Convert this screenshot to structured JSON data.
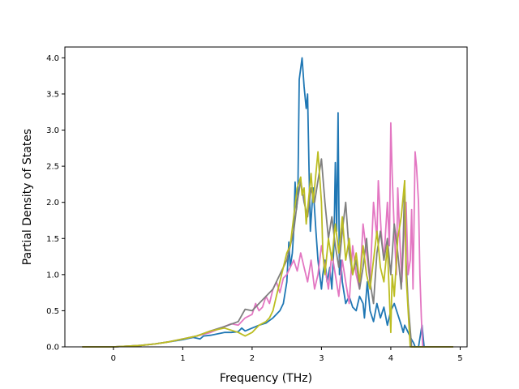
{
  "chart_data": {
    "type": "line",
    "xlabel": "Frequency (THz)",
    "ylabel": "Partial Density of States",
    "xlim": [
      -0.7,
      5.1
    ],
    "ylim": [
      0,
      4.15
    ],
    "x_ticks": [
      "0",
      "1",
      "2",
      "3",
      "4",
      "5"
    ],
    "y_ticks": [
      "0.0",
      "0.5",
      "1.0",
      "1.5",
      "2.0",
      "2.5",
      "3.0",
      "3.5",
      "4.0"
    ],
    "grid": false,
    "legend": "none",
    "series": [
      {
        "color": "#1f77b4",
        "points": [
          [
            -0.45,
            0
          ],
          [
            0,
            0
          ],
          [
            0.2,
            0.01
          ],
          [
            0.4,
            0.02
          ],
          [
            0.6,
            0.04
          ],
          [
            0.8,
            0.07
          ],
          [
            1.0,
            0.1
          ],
          [
            1.1,
            0.12
          ],
          [
            1.15,
            0.13
          ],
          [
            1.2,
            0.12
          ],
          [
            1.25,
            0.11
          ],
          [
            1.3,
            0.15
          ],
          [
            1.4,
            0.16
          ],
          [
            1.5,
            0.18
          ],
          [
            1.6,
            0.2
          ],
          [
            1.7,
            0.2
          ],
          [
            1.8,
            0.21
          ],
          [
            1.85,
            0.26
          ],
          [
            1.9,
            0.22
          ],
          [
            2.0,
            0.26
          ],
          [
            2.1,
            0.3
          ],
          [
            2.2,
            0.33
          ],
          [
            2.3,
            0.4
          ],
          [
            2.35,
            0.45
          ],
          [
            2.4,
            0.5
          ],
          [
            2.45,
            0.6
          ],
          [
            2.5,
            0.9
          ],
          [
            2.53,
            1.45
          ],
          [
            2.55,
            1.1
          ],
          [
            2.58,
            1.3
          ],
          [
            2.6,
            1.6
          ],
          [
            2.62,
            2.28
          ],
          [
            2.64,
            1.9
          ],
          [
            2.66,
            2.1
          ],
          [
            2.68,
            3.7
          ],
          [
            2.72,
            4.0
          ],
          [
            2.75,
            3.6
          ],
          [
            2.78,
            3.3
          ],
          [
            2.8,
            3.5
          ],
          [
            2.82,
            2.5
          ],
          [
            2.84,
            1.6
          ],
          [
            2.88,
            2.2
          ],
          [
            2.92,
            1.6
          ],
          [
            2.95,
            1.2
          ],
          [
            3.0,
            0.8
          ],
          [
            3.02,
            1.0
          ],
          [
            3.05,
            1.2
          ],
          [
            3.08,
            0.9
          ],
          [
            3.12,
            1.1
          ],
          [
            3.15,
            0.8
          ],
          [
            3.18,
            1.4
          ],
          [
            3.2,
            2.55
          ],
          [
            3.22,
            1.6
          ],
          [
            3.24,
            3.24
          ],
          [
            3.26,
            1.0
          ],
          [
            3.28,
            1.2
          ],
          [
            3.3,
            0.9
          ],
          [
            3.35,
            0.6
          ],
          [
            3.4,
            0.7
          ],
          [
            3.45,
            0.55
          ],
          [
            3.5,
            0.5
          ],
          [
            3.55,
            0.7
          ],
          [
            3.6,
            0.6
          ],
          [
            3.62,
            0.4
          ],
          [
            3.66,
            0.9
          ],
          [
            3.7,
            0.5
          ],
          [
            3.75,
            0.35
          ],
          [
            3.8,
            0.6
          ],
          [
            3.85,
            0.4
          ],
          [
            3.9,
            0.55
          ],
          [
            3.95,
            0.3
          ],
          [
            4.0,
            0.5
          ],
          [
            4.05,
            0.6
          ],
          [
            4.1,
            0.45
          ],
          [
            4.15,
            0.3
          ],
          [
            4.18,
            0.2
          ],
          [
            4.2,
            0.3
          ],
          [
            4.25,
            0.2
          ],
          [
            4.3,
            0.1
          ],
          [
            4.33,
            0.05
          ],
          [
            4.35,
            0.0
          ],
          [
            4.4,
            0.0
          ],
          [
            4.45,
            0.3
          ],
          [
            4.48,
            0.0
          ],
          [
            4.9,
            0
          ]
        ]
      },
      {
        "color": "#e377c2",
        "points": [
          [
            -0.45,
            0
          ],
          [
            0,
            0
          ],
          [
            0.2,
            0.01
          ],
          [
            0.4,
            0.02
          ],
          [
            0.6,
            0.04
          ],
          [
            0.8,
            0.07
          ],
          [
            1.0,
            0.11
          ],
          [
            1.2,
            0.15
          ],
          [
            1.4,
            0.2
          ],
          [
            1.6,
            0.28
          ],
          [
            1.7,
            0.32
          ],
          [
            1.8,
            0.3
          ],
          [
            1.9,
            0.4
          ],
          [
            2.0,
            0.45
          ],
          [
            2.05,
            0.6
          ],
          [
            2.1,
            0.5
          ],
          [
            2.15,
            0.55
          ],
          [
            2.2,
            0.7
          ],
          [
            2.25,
            0.6
          ],
          [
            2.3,
            0.8
          ],
          [
            2.35,
            0.9
          ],
          [
            2.4,
            0.75
          ],
          [
            2.45,
            0.95
          ],
          [
            2.5,
            1.0
          ],
          [
            2.55,
            1.1
          ],
          [
            2.6,
            1.2
          ],
          [
            2.65,
            1.05
          ],
          [
            2.7,
            1.3
          ],
          [
            2.75,
            1.1
          ],
          [
            2.8,
            0.9
          ],
          [
            2.85,
            1.2
          ],
          [
            2.9,
            0.8
          ],
          [
            2.95,
            1.0
          ],
          [
            3.0,
            1.4
          ],
          [
            3.05,
            1.1
          ],
          [
            3.1,
            0.8
          ],
          [
            3.15,
            1.3
          ],
          [
            3.2,
            1.0
          ],
          [
            3.25,
            0.7
          ],
          [
            3.3,
            1.2
          ],
          [
            3.35,
            0.9
          ],
          [
            3.4,
            0.6
          ],
          [
            3.45,
            1.4
          ],
          [
            3.5,
            1.0
          ],
          [
            3.55,
            0.8
          ],
          [
            3.6,
            1.7
          ],
          [
            3.65,
            1.3
          ],
          [
            3.7,
            0.9
          ],
          [
            3.75,
            2.0
          ],
          [
            3.8,
            1.5
          ],
          [
            3.82,
            2.3
          ],
          [
            3.86,
            1.6
          ],
          [
            3.9,
            1.2
          ],
          [
            3.95,
            2.0
          ],
          [
            3.98,
            1.4
          ],
          [
            4.0,
            3.1
          ],
          [
            4.02,
            2.4
          ],
          [
            4.05,
            1.6
          ],
          [
            4.08,
            1.0
          ],
          [
            4.1,
            2.2
          ],
          [
            4.13,
            1.5
          ],
          [
            4.16,
            0.9
          ],
          [
            4.2,
            1.8
          ],
          [
            4.22,
            2.0
          ],
          [
            4.25,
            1.0
          ],
          [
            4.28,
            1.2
          ],
          [
            4.3,
            1.9
          ],
          [
            4.32,
            0.8
          ],
          [
            4.35,
            2.7
          ],
          [
            4.37,
            2.5
          ],
          [
            4.4,
            2.0
          ],
          [
            4.42,
            1.0
          ],
          [
            4.44,
            0.4
          ],
          [
            4.46,
            0.0
          ],
          [
            4.9,
            0
          ]
        ]
      },
      {
        "color": "#7f7f7f",
        "points": [
          [
            -0.45,
            0
          ],
          [
            0,
            0
          ],
          [
            0.2,
            0.01
          ],
          [
            0.4,
            0.02
          ],
          [
            0.6,
            0.04
          ],
          [
            0.8,
            0.07
          ],
          [
            1.0,
            0.11
          ],
          [
            1.2,
            0.15
          ],
          [
            1.4,
            0.22
          ],
          [
            1.6,
            0.28
          ],
          [
            1.8,
            0.35
          ],
          [
            1.9,
            0.52
          ],
          [
            2.0,
            0.5
          ],
          [
            2.1,
            0.6
          ],
          [
            2.2,
            0.7
          ],
          [
            2.3,
            0.8
          ],
          [
            2.4,
            1.0
          ],
          [
            2.5,
            1.2
          ],
          [
            2.6,
            1.6
          ],
          [
            2.65,
            2.0
          ],
          [
            2.7,
            2.3
          ],
          [
            2.75,
            2.0
          ],
          [
            2.8,
            1.8
          ],
          [
            2.85,
            2.2
          ],
          [
            2.9,
            2.0
          ],
          [
            2.95,
            2.3
          ],
          [
            3.0,
            2.6
          ],
          [
            3.05,
            2.0
          ],
          [
            3.1,
            1.5
          ],
          [
            3.15,
            1.8
          ],
          [
            3.2,
            1.4
          ],
          [
            3.25,
            1.1
          ],
          [
            3.3,
            1.6
          ],
          [
            3.35,
            2.0
          ],
          [
            3.4,
            1.3
          ],
          [
            3.45,
            1.0
          ],
          [
            3.5,
            1.2
          ],
          [
            3.55,
            0.8
          ],
          [
            3.6,
            1.1
          ],
          [
            3.65,
            1.5
          ],
          [
            3.7,
            0.9
          ],
          [
            3.75,
            0.6
          ],
          [
            3.8,
            1.3
          ],
          [
            3.85,
            1.6
          ],
          [
            3.9,
            1.2
          ],
          [
            3.95,
            1.5
          ],
          [
            4.0,
            1.0
          ],
          [
            4.05,
            1.7
          ],
          [
            4.1,
            1.3
          ],
          [
            4.15,
            0.8
          ],
          [
            4.18,
            1.5
          ],
          [
            4.2,
            2.3
          ],
          [
            4.22,
            1.2
          ],
          [
            4.25,
            0.6
          ],
          [
            4.3,
            0.0
          ],
          [
            4.9,
            0
          ]
        ]
      },
      {
        "color": "#bcbd22",
        "points": [
          [
            -0.45,
            0
          ],
          [
            0,
            0
          ],
          [
            0.2,
            0.01
          ],
          [
            0.4,
            0.02
          ],
          [
            0.6,
            0.04
          ],
          [
            0.8,
            0.07
          ],
          [
            1.0,
            0.11
          ],
          [
            1.2,
            0.15
          ],
          [
            1.4,
            0.22
          ],
          [
            1.6,
            0.26
          ],
          [
            1.8,
            0.2
          ],
          [
            1.9,
            0.15
          ],
          [
            2.0,
            0.2
          ],
          [
            2.1,
            0.3
          ],
          [
            2.2,
            0.35
          ],
          [
            2.25,
            0.4
          ],
          [
            2.3,
            0.5
          ],
          [
            2.35,
            0.7
          ],
          [
            2.4,
            0.9
          ],
          [
            2.45,
            1.1
          ],
          [
            2.5,
            1.3
          ],
          [
            2.55,
            1.4
          ],
          [
            2.6,
            1.8
          ],
          [
            2.65,
            2.2
          ],
          [
            2.7,
            2.35
          ],
          [
            2.72,
            2.1
          ],
          [
            2.75,
            2.2
          ],
          [
            2.78,
            1.7
          ],
          [
            2.8,
            1.9
          ],
          [
            2.85,
            2.4
          ],
          [
            2.88,
            2.0
          ],
          [
            2.9,
            2.2
          ],
          [
            2.95,
            2.7
          ],
          [
            3.0,
            2.0
          ],
          [
            3.02,
            1.3
          ],
          [
            3.05,
            1.0
          ],
          [
            3.1,
            1.5
          ],
          [
            3.15,
            1.2
          ],
          [
            3.2,
            1.7
          ],
          [
            3.25,
            1.3
          ],
          [
            3.3,
            1.8
          ],
          [
            3.35,
            1.2
          ],
          [
            3.4,
            1.5
          ],
          [
            3.45,
            1.0
          ],
          [
            3.5,
            1.3
          ],
          [
            3.55,
            0.9
          ],
          [
            3.6,
            1.4
          ],
          [
            3.65,
            1.0
          ],
          [
            3.7,
            0.8
          ],
          [
            3.75,
            1.2
          ],
          [
            3.8,
            1.6
          ],
          [
            3.85,
            1.1
          ],
          [
            3.9,
            0.9
          ],
          [
            3.95,
            1.4
          ],
          [
            4.0,
            0.2
          ],
          [
            4.02,
            1.0
          ],
          [
            4.05,
            0.7
          ],
          [
            4.1,
            1.5
          ],
          [
            4.15,
            1.8
          ],
          [
            4.2,
            2.3
          ],
          [
            4.22,
            1.0
          ],
          [
            4.25,
            0.5
          ],
          [
            4.28,
            0.0
          ],
          [
            4.9,
            0
          ]
        ]
      }
    ]
  }
}
